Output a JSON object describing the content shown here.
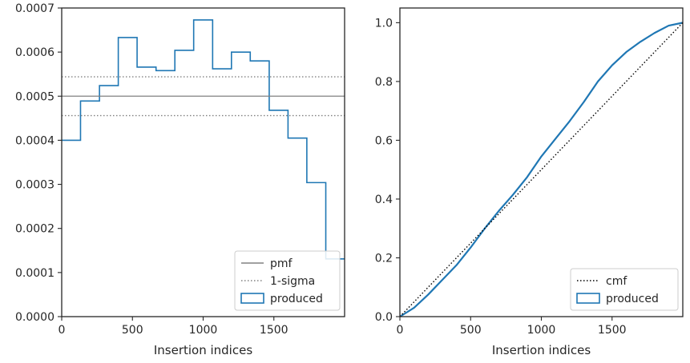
{
  "chart_data": [
    {
      "type": "line",
      "panel": "left",
      "xlabel": "Insertion indices",
      "ylabel": "",
      "xlim": [
        0,
        2000
      ],
      "ylim": [
        0,
        0.0007
      ],
      "xticks": [
        0,
        500,
        1000,
        1500
      ],
      "xtick_labels": [
        "0",
        "500",
        "1000",
        "1500"
      ],
      "yticks": [
        0,
        0.0001,
        0.0002,
        0.0003,
        0.0004,
        0.0005,
        0.0006,
        0.0007
      ],
      "ytick_labels": [
        "0.0000",
        "0.0001",
        "0.0002",
        "0.0003",
        "0.0004",
        "0.0005",
        "0.0006",
        "0.0007"
      ],
      "series": [
        {
          "name": "produced",
          "kind": "step-histogram",
          "color": "#1f77b4",
          "bin_edges": [
            0,
            133,
            267,
            400,
            533,
            667,
            800,
            933,
            1067,
            1200,
            1333,
            1467,
            1600,
            1733,
            1867,
            2000
          ],
          "values": [
            0.0004,
            0.000489,
            0.000524,
            0.000633,
            0.000566,
            0.000558,
            0.000604,
            0.000673,
            0.000562,
            0.0006,
            0.00058,
            0.000468,
            0.000405,
            0.000304,
            0.000131
          ]
        },
        {
          "name": "pmf",
          "kind": "hline",
          "color": "#808080",
          "value": 0.0005
        },
        {
          "name": "1-sigma",
          "kind": "hline-dotted",
          "color": "#808080",
          "values": [
            0.000544,
            0.000456
          ]
        }
      ],
      "legend": {
        "placement": "lower-right",
        "entries": [
          {
            "label": "pmf",
            "style": "solid-line",
            "color": "#808080"
          },
          {
            "label": "1-sigma",
            "style": "dotted-line",
            "color": "#808080"
          },
          {
            "label": "produced",
            "style": "box",
            "color": "#1f77b4"
          }
        ]
      }
    },
    {
      "type": "line",
      "panel": "right",
      "xlabel": "Insertion indices",
      "ylabel": "",
      "xlim": [
        0,
        2000
      ],
      "ylim": [
        0,
        1.05
      ],
      "xticks": [
        0,
        500,
        1000,
        1500
      ],
      "xtick_labels": [
        "0",
        "500",
        "1000",
        "1500"
      ],
      "yticks": [
        0,
        0.2,
        0.4,
        0.6,
        0.8,
        1.0
      ],
      "ytick_labels": [
        "0.0",
        "0.2",
        "0.4",
        "0.6",
        "0.8",
        "1.0"
      ],
      "series": [
        {
          "name": "produced",
          "kind": "step-cumulative",
          "color": "#1f77b4",
          "x": [
            0,
            100,
            200,
            300,
            400,
            500,
            600,
            700,
            800,
            900,
            1000,
            1100,
            1200,
            1300,
            1400,
            1500,
            1600,
            1700,
            1800,
            1900,
            2000
          ],
          "y": [
            0,
            0.03,
            0.075,
            0.125,
            0.175,
            0.235,
            0.3,
            0.36,
            0.415,
            0.475,
            0.545,
            0.605,
            0.665,
            0.73,
            0.8,
            0.855,
            0.9,
            0.935,
            0.965,
            0.99,
            1.0
          ]
        },
        {
          "name": "cmf",
          "kind": "dotted-line",
          "color": "#000000",
          "x": [
            0,
            2000
          ],
          "y": [
            0,
            1.0
          ]
        }
      ],
      "legend": {
        "placement": "lower-right",
        "entries": [
          {
            "label": "cmf",
            "style": "dotted-line",
            "color": "#000000"
          },
          {
            "label": "produced",
            "style": "box",
            "color": "#1f77b4"
          }
        ]
      }
    }
  ]
}
